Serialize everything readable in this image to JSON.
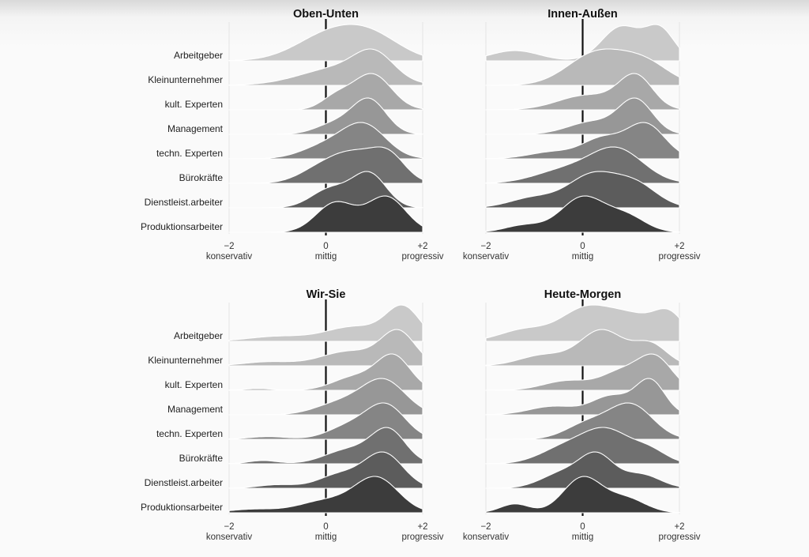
{
  "chart_data": [
    {
      "type": "ridgeline",
      "title": "Oben-Unten",
      "categories": [
        "Arbeitgeber",
        "Kleinunternehmer",
        "kult. Experten",
        "Management",
        "techn. Experten",
        "Bürokräfte",
        "Dienstleist.arbeiter",
        "Produktionsarbeiter"
      ],
      "xlim": [
        -2,
        2
      ],
      "x_ticks": [
        {
          "value": -2,
          "label": "−2",
          "sublabel": "konservativ"
        },
        {
          "value": 0,
          "label": "0",
          "sublabel": "mittig"
        },
        {
          "value": 2,
          "label": "+2",
          "sublabel": "progressiv"
        }
      ],
      "reference_line": 0,
      "series": [
        {
          "name": "Arbeitgeber",
          "peaks": [
            [
              0.1,
              0.7,
              0.55
            ],
            [
              1.0,
              0.6,
              0.4
            ]
          ],
          "fill": "#c9c9c9"
        },
        {
          "name": "Kleinunternehmer",
          "peaks": [
            [
              0.3,
              0.8,
              0.45
            ],
            [
              1.0,
              0.4,
              0.6
            ]
          ],
          "fill": "#b9b9b9"
        },
        {
          "name": "kult. Experten",
          "peaks": [
            [
              0.95,
              0.4,
              0.9
            ],
            [
              0.2,
              0.3,
              0.3
            ]
          ],
          "fill": "#a8a8a8"
        },
        {
          "name": "Management",
          "peaks": [
            [
              0.9,
              0.35,
              0.95
            ],
            [
              0.2,
              0.4,
              0.3
            ]
          ],
          "fill": "#979797"
        },
        {
          "name": "techn. Experten",
          "peaks": [
            [
              0.8,
              0.45,
              0.9
            ],
            [
              0.0,
              0.5,
              0.35
            ]
          ],
          "fill": "#858585"
        },
        {
          "name": "Bürokräfte",
          "peaks": [
            [
              0.6,
              0.45,
              0.55
            ],
            [
              1.3,
              0.35,
              0.55
            ],
            [
              -0.1,
              0.45,
              0.3
            ]
          ],
          "fill": "#707070"
        },
        {
          "name": "Dienstleist.arbeiter",
          "peaks": [
            [
              0.9,
              0.35,
              0.8
            ],
            [
              0.1,
              0.4,
              0.45
            ]
          ],
          "fill": "#5c5c5c"
        },
        {
          "name": "Produktionsarbeiter",
          "peaks": [
            [
              0.2,
              0.4,
              0.75
            ],
            [
              1.25,
              0.4,
              0.9
            ]
          ],
          "fill": "#3c3c3c"
        }
      ]
    },
    {
      "type": "ridgeline",
      "title": "Innen-Außen",
      "categories": [
        "Arbeitgeber",
        "Kleinunternehmer",
        "kult. Experten",
        "Management",
        "techn. Experten",
        "Bürokräfte",
        "Dienstleist.arbeiter",
        "Produktionsarbeiter"
      ],
      "xlim": [
        -2,
        2
      ],
      "x_ticks": [
        {
          "value": -2,
          "label": "−2",
          "sublabel": "konservativ"
        },
        {
          "value": 0,
          "label": "0",
          "sublabel": "mittig"
        },
        {
          "value": 2,
          "label": "+2",
          "sublabel": "progressiv"
        }
      ],
      "reference_line": 0,
      "series": [
        {
          "name": "Arbeitgeber",
          "peaks": [
            [
              0.8,
              0.4,
              1.0
            ],
            [
              1.6,
              0.3,
              0.9
            ],
            [
              -1.4,
              0.5,
              0.3
            ]
          ],
          "fill": "#c9c9c9"
        },
        {
          "name": "Kleinunternehmer",
          "peaks": [
            [
              0.3,
              0.6,
              0.95
            ],
            [
              1.3,
              0.5,
              0.6
            ]
          ],
          "fill": "#b9b9b9"
        },
        {
          "name": "kult. Experten",
          "peaks": [
            [
              1.1,
              0.35,
              1.0
            ],
            [
              0.1,
              0.6,
              0.45
            ]
          ],
          "fill": "#a8a8a8"
        },
        {
          "name": "Management",
          "peaks": [
            [
              1.1,
              0.35,
              0.95
            ],
            [
              0.2,
              0.5,
              0.35
            ]
          ],
          "fill": "#979797"
        },
        {
          "name": "techn. Experten",
          "peaks": [
            [
              1.3,
              0.4,
              1.0
            ],
            [
              0.4,
              0.4,
              0.55
            ],
            [
              -0.6,
              0.5,
              0.2
            ]
          ],
          "fill": "#858585"
        },
        {
          "name": "Bürokräfte",
          "peaks": [
            [
              0.7,
              0.55,
              0.95
            ],
            [
              -0.4,
              0.6,
              0.35
            ]
          ],
          "fill": "#707070"
        },
        {
          "name": "Dienstleist.arbeiter",
          "peaks": [
            [
              0.2,
              0.5,
              0.8
            ],
            [
              1.1,
              0.45,
              0.55
            ],
            [
              -1.0,
              0.5,
              0.25
            ]
          ],
          "fill": "#5c5c5c"
        },
        {
          "name": "Produktionsarbeiter",
          "peaks": [
            [
              0.0,
              0.45,
              1.0
            ],
            [
              0.9,
              0.4,
              0.45
            ],
            [
              -1.2,
              0.4,
              0.2
            ]
          ],
          "fill": "#3c3c3c"
        }
      ]
    },
    {
      "type": "ridgeline",
      "title": "Wir-Sie",
      "categories": [
        "Arbeitgeber",
        "Kleinunternehmer",
        "kult. Experten",
        "Management",
        "techn. Experten",
        "Bürokräfte",
        "Dienstleist.arbeiter",
        "Produktionsarbeiter"
      ],
      "xlim": [
        -2,
        2
      ],
      "x_ticks": [
        {
          "value": -2,
          "label": "−2",
          "sublabel": "konservativ"
        },
        {
          "value": 0,
          "label": "0",
          "sublabel": "mittig"
        },
        {
          "value": 2,
          "label": "+2",
          "sublabel": "progressiv"
        }
      ],
      "reference_line": 0,
      "series": [
        {
          "name": "Arbeitgeber",
          "peaks": [
            [
              1.6,
              0.35,
              1.0
            ],
            [
              0.6,
              0.6,
              0.45
            ],
            [
              -1.0,
              0.6,
              0.15
            ]
          ],
          "fill": "#c9c9c9"
        },
        {
          "name": "Kleinunternehmer",
          "peaks": [
            [
              1.5,
              0.35,
              1.0
            ],
            [
              0.5,
              0.6,
              0.45
            ],
            [
              -1.2,
              0.5,
              0.12
            ]
          ],
          "fill": "#b9b9b9"
        },
        {
          "name": "kult. Experten",
          "peaks": [
            [
              1.4,
              0.35,
              1.0
            ],
            [
              0.6,
              0.45,
              0.4
            ],
            [
              -1.4,
              0.3,
              0.05
            ]
          ],
          "fill": "#a8a8a8"
        },
        {
          "name": "Management",
          "peaks": [
            [
              1.2,
              0.45,
              1.0
            ],
            [
              0.3,
              0.5,
              0.35
            ]
          ],
          "fill": "#979797"
        },
        {
          "name": "techn. Experten",
          "peaks": [
            [
              1.25,
              0.4,
              1.0
            ],
            [
              0.5,
              0.45,
              0.4
            ],
            [
              -1.2,
              0.4,
              0.08
            ]
          ],
          "fill": "#858585"
        },
        {
          "name": "Bürokräfte",
          "peaks": [
            [
              1.3,
              0.35,
              1.0
            ],
            [
              0.5,
              0.5,
              0.45
            ],
            [
              -1.3,
              0.3,
              0.1
            ]
          ],
          "fill": "#707070"
        },
        {
          "name": "Dienstleist.arbeiter",
          "peaks": [
            [
              1.2,
              0.4,
              1.0
            ],
            [
              0.3,
              0.45,
              0.4
            ],
            [
              -1.0,
              0.4,
              0.1
            ]
          ],
          "fill": "#5c5c5c"
        },
        {
          "name": "Produktionsarbeiter",
          "peaks": [
            [
              1.05,
              0.45,
              1.0
            ],
            [
              0.0,
              0.55,
              0.35
            ],
            [
              -1.5,
              0.5,
              0.1
            ]
          ],
          "fill": "#3c3c3c"
        }
      ]
    },
    {
      "type": "ridgeline",
      "title": "Heute-Morgen",
      "categories": [
        "Arbeitgeber",
        "Kleinunternehmer",
        "kult. Experten",
        "Management",
        "techn. Experten",
        "Bürokräfte",
        "Dienstleist.arbeiter",
        "Produktionsarbeiter"
      ],
      "xlim": [
        -2,
        2
      ],
      "x_ticks": [
        {
          "value": -2,
          "label": "−2",
          "sublabel": "konservativ"
        },
        {
          "value": 0,
          "label": "0",
          "sublabel": "mittig"
        },
        {
          "value": 2,
          "label": "+2",
          "sublabel": "progressiv"
        }
      ],
      "reference_line": 0,
      "series": [
        {
          "name": "Arbeitgeber",
          "peaks": [
            [
              0.0,
              0.5,
              0.6
            ],
            [
              1.0,
              0.6,
              0.55
            ],
            [
              1.8,
              0.3,
              0.45
            ],
            [
              -1.2,
              0.5,
              0.25
            ]
          ],
          "fill": "#c9c9c9"
        },
        {
          "name": "Kleinunternehmer",
          "peaks": [
            [
              0.4,
              0.45,
              1.0
            ],
            [
              1.4,
              0.35,
              0.6
            ],
            [
              -0.8,
              0.5,
              0.3
            ]
          ],
          "fill": "#b9b9b9"
        },
        {
          "name": "kult. Experten",
          "peaks": [
            [
              1.5,
              0.35,
              1.0
            ],
            [
              0.8,
              0.4,
              0.55
            ],
            [
              -0.3,
              0.5,
              0.3
            ]
          ],
          "fill": "#a8a8a8"
        },
        {
          "name": "Management",
          "peaks": [
            [
              1.4,
              0.3,
              1.0
            ],
            [
              0.6,
              0.4,
              0.55
            ],
            [
              -0.6,
              0.5,
              0.25
            ]
          ],
          "fill": "#979797"
        },
        {
          "name": "techn. Experten",
          "peaks": [
            [
              1.0,
              0.45,
              1.0
            ],
            [
              0.1,
              0.45,
              0.45
            ]
          ],
          "fill": "#858585"
        },
        {
          "name": "Bürokräfte",
          "peaks": [
            [
              0.5,
              0.5,
              1.0
            ],
            [
              -0.4,
              0.5,
              0.45
            ],
            [
              1.4,
              0.35,
              0.35
            ]
          ],
          "fill": "#707070"
        },
        {
          "name": "Dienstleist.arbeiter",
          "peaks": [
            [
              0.3,
              0.35,
              1.0
            ],
            [
              -0.4,
              0.45,
              0.5
            ],
            [
              1.2,
              0.4,
              0.45
            ]
          ],
          "fill": "#5c5c5c"
        },
        {
          "name": "Produktionsarbeiter",
          "peaks": [
            [
              0.0,
              0.4,
              1.0
            ],
            [
              -1.4,
              0.3,
              0.25
            ],
            [
              0.9,
              0.4,
              0.4
            ]
          ],
          "fill": "#3c3c3c"
        }
      ]
    }
  ]
}
